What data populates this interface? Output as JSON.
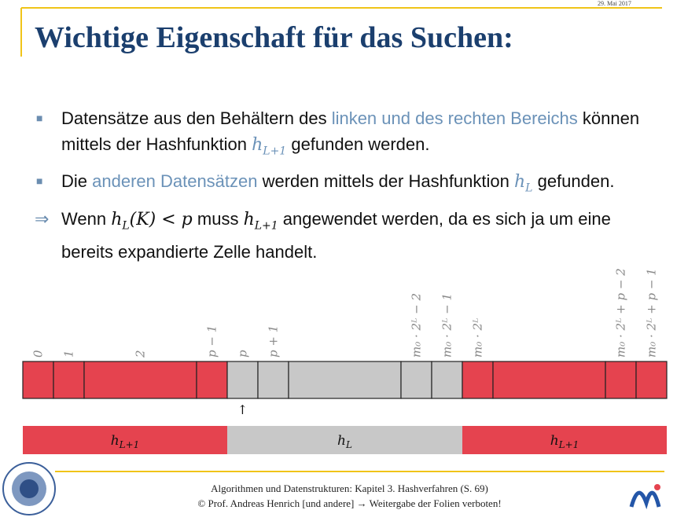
{
  "date": "29. Mai 2017",
  "title": "Wichtige Eigenschaft für das Suchen:",
  "bullets": [
    {
      "marker": "■",
      "parts": [
        {
          "t": "Datensätze aus den Behältern des "
        },
        {
          "t": "linken und des rechten Bereichs",
          "s": "link"
        },
        {
          "t": " können mittels der Hashfunktion "
        },
        {
          "m": "h",
          "sub": "L+1",
          "s": "link"
        },
        {
          "t": " gefunden werden."
        }
      ]
    },
    {
      "marker": "■",
      "parts": [
        {
          "t": "Die "
        },
        {
          "t": "anderen Datensätzen",
          "s": "link"
        },
        {
          "t": " werden mittels der Hashfunktion "
        },
        {
          "m": "h",
          "sub": "L",
          "s": "link"
        },
        {
          "t": " gefunden."
        }
      ]
    },
    {
      "marker": "⇒",
      "parts": [
        {
          "t": "Wenn "
        },
        {
          "m": "h",
          "sub": "L",
          "after": "(K) < p"
        },
        {
          "t": " muss "
        },
        {
          "m": "h",
          "sub": "L+1"
        },
        {
          "t": " angewendet werden, da es sich ja um eine bereits expandierte Zelle handelt."
        }
      ]
    }
  ],
  "cells": [
    {
      "label": "0",
      "color": "#e5434f"
    },
    {
      "label": "1",
      "color": "#e5434f"
    },
    {
      "label": "2",
      "color": "#e5434f"
    },
    {
      "label": "p − 1",
      "color": "#e5434f"
    },
    {
      "label": "p",
      "color": "#c8c8c8"
    },
    {
      "label": "p + 1",
      "color": "#c8c8c8"
    },
    {
      "label": null,
      "color": "#c8c8c8"
    },
    {
      "label": "m₀ · 2ᴸ − 2",
      "color": "#c8c8c8"
    },
    {
      "label": "m₀ · 2ᴸ − 1",
      "color": "#c8c8c8"
    },
    {
      "label": "m₀ · 2ᴸ",
      "color": "#e5434f"
    },
    {
      "label": null,
      "color": "#e5434f"
    },
    {
      "label": "m₀ · 2ᴸ + p − 2",
      "color": "#e5434f"
    },
    {
      "label": "m₀ · 2ᴸ + p − 1",
      "color": "#e5434f"
    }
  ],
  "pointer": "↑",
  "ranges": [
    {
      "m": "h",
      "sub": "L+1",
      "color": "#e5434f"
    },
    {
      "m": "h",
      "sub": "L",
      "color": "#c8c8c8"
    },
    {
      "m": "h",
      "sub": "L+1",
      "color": "#e5434f"
    }
  ],
  "footer": [
    "Algorithmen und Datenstrukturen: Kapitel 3. Hashverfahren (S. 69)",
    "© Prof. Andreas Henrich [und andere] → Weitergabe der Folien verboten!"
  ]
}
